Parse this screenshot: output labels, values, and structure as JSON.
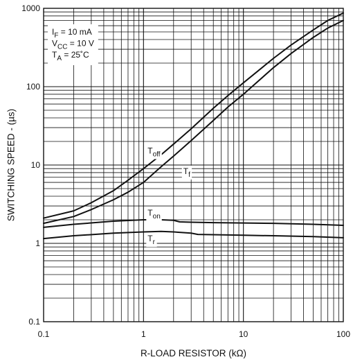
{
  "chart_data": {
    "type": "line",
    "title": "",
    "xlabel": "R-LOAD RESISTOR (kΩ)",
    "ylabel": "SWITCHING SPEED - (µs)",
    "xscale": "log",
    "yscale": "log",
    "xlim": [
      0.1,
      100
    ],
    "ylim": [
      0.1,
      1000
    ],
    "grid": true,
    "x_ticks": [
      {
        "value": 0.1,
        "label": "0.1"
      },
      {
        "value": 1,
        "label": "1"
      },
      {
        "value": 10,
        "label": "10"
      },
      {
        "value": 100,
        "label": "100"
      }
    ],
    "y_ticks": [
      {
        "value": 0.1,
        "label": "0.1"
      },
      {
        "value": 1,
        "label": "1"
      },
      {
        "value": 10,
        "label": "10"
      },
      {
        "value": 100,
        "label": "100"
      },
      {
        "value": 1000,
        "label": "1000"
      }
    ],
    "conditions": [
      {
        "sym": "I",
        "sub": "F",
        "text": " = 10 mA"
      },
      {
        "sym": "V",
        "sub": "CC",
        "text": " = 10 V"
      },
      {
        "sym": "T",
        "sub": "A",
        "text": " = 25˚C"
      }
    ],
    "series": [
      {
        "name": "off",
        "sym": "T",
        "sub": "off",
        "label_at": [
          1.1,
          14
        ],
        "x": [
          0.1,
          0.2,
          0.3,
          0.5,
          0.7,
          1,
          1.5,
          2,
          3,
          5,
          7,
          10,
          20,
          30,
          50,
          70,
          100
        ],
        "y": [
          2.1,
          2.6,
          3.3,
          4.7,
          6.4,
          9,
          13.5,
          18.5,
          29,
          53,
          77,
          112,
          230,
          340,
          530,
          700,
          870
        ]
      },
      {
        "name": "f",
        "sym": "T",
        "sub": "f",
        "label_at": [
          2.5,
          7.7
        ],
        "x": [
          0.1,
          0.2,
          0.3,
          0.5,
          0.7,
          1,
          1.5,
          2,
          3,
          5,
          7,
          10,
          20,
          30,
          50,
          70,
          100
        ],
        "y": [
          1.8,
          2.2,
          2.7,
          3.6,
          4.5,
          6,
          9.5,
          13,
          20.5,
          37,
          55,
          80,
          175,
          265,
          425,
          560,
          700
        ]
      },
      {
        "name": "on",
        "sym": "T",
        "sub": "on",
        "label_at": [
          1.1,
          2.25
        ],
        "x": [
          0.1,
          0.2,
          0.5,
          1,
          1.5,
          2,
          2.3,
          3,
          5,
          10,
          20,
          50,
          100
        ],
        "y": [
          1.6,
          1.75,
          1.92,
          2.0,
          2.0,
          1.97,
          1.88,
          1.86,
          1.84,
          1.82,
          1.8,
          1.75,
          1.7
        ]
      },
      {
        "name": "r",
        "sym": "T",
        "sub": "r",
        "label_at": [
          1.1,
          1.06
        ],
        "x": [
          0.1,
          0.2,
          0.5,
          1,
          1.5,
          2,
          3,
          3.5,
          5,
          10,
          20,
          50,
          100
        ],
        "y": [
          1.15,
          1.25,
          1.35,
          1.4,
          1.42,
          1.4,
          1.35,
          1.3,
          1.29,
          1.27,
          1.25,
          1.22,
          1.18
        ]
      }
    ]
  }
}
